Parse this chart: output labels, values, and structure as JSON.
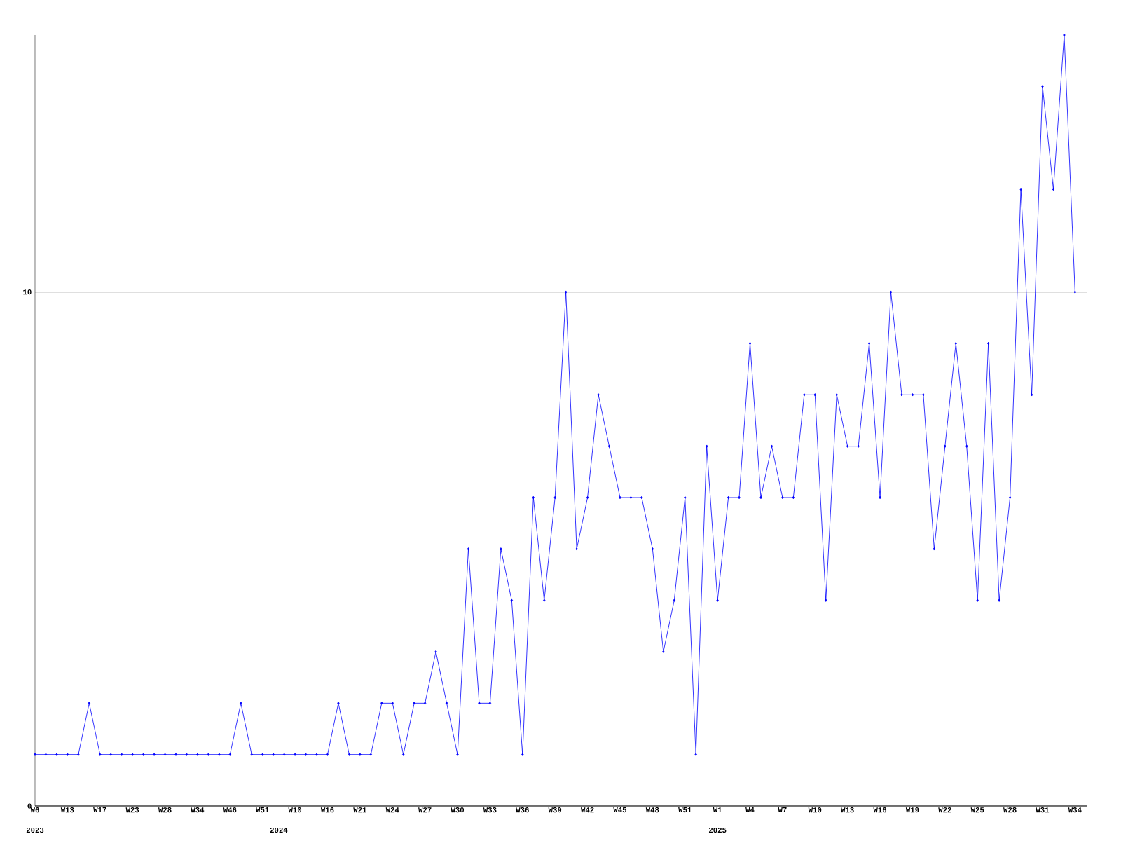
{
  "chart_data": {
    "type": "line",
    "categories": [
      "W6",
      null,
      null,
      "W13",
      null,
      null,
      "W17",
      null,
      null,
      "W23",
      null,
      null,
      "W28",
      null,
      null,
      "W34",
      null,
      null,
      "W46",
      null,
      null,
      "W51",
      null,
      null,
      "W10",
      null,
      null,
      "W16",
      null,
      null,
      "W21",
      null,
      null,
      "W24",
      null,
      null,
      "W27",
      null,
      null,
      "W30",
      null,
      null,
      "W33",
      null,
      null,
      "W36",
      null,
      null,
      "W39",
      null,
      null,
      "W42",
      null,
      null,
      "W45",
      null,
      null,
      "W48",
      null,
      null,
      "W51",
      null,
      null,
      "W1",
      null,
      null,
      "W4",
      null,
      null,
      "W7",
      null,
      null,
      "W10",
      null,
      null,
      "W13",
      null,
      null,
      "W16",
      null,
      null,
      "W19",
      null,
      null,
      "W22",
      null,
      null,
      "W25",
      null,
      null,
      "W28",
      null,
      null,
      "W31",
      null,
      null,
      "W34"
    ],
    "series": [
      {
        "color": "#0000ff",
        "values": [
          1,
          1,
          1,
          1,
          1,
          2,
          1,
          1,
          1,
          1,
          1,
          1,
          1,
          1,
          1,
          1,
          1,
          1,
          1,
          2,
          1,
          1,
          1,
          1,
          1,
          1,
          1,
          1,
          2,
          1,
          1,
          1,
          2,
          2,
          1,
          2,
          2,
          3,
          2,
          1,
          5,
          2,
          2,
          5,
          4,
          1,
          6,
          4,
          6,
          10,
          5,
          6,
          8,
          7,
          6,
          6,
          6,
          5,
          3,
          4,
          6,
          1,
          7,
          4,
          6,
          6,
          9,
          6,
          7,
          6,
          6,
          8,
          8,
          4,
          8,
          7,
          7,
          9,
          6,
          10,
          8,
          8,
          8,
          5,
          7,
          9,
          7,
          4,
          9,
          4,
          6,
          12,
          8,
          14,
          12,
          15,
          10
        ]
      }
    ],
    "ylim": [
      0,
      15
    ],
    "yticks": [
      0,
      10
    ],
    "grid": "y",
    "marker": "diamond",
    "line_style": "solid",
    "annotations": [
      "2023",
      "2024",
      "2025"
    ]
  }
}
